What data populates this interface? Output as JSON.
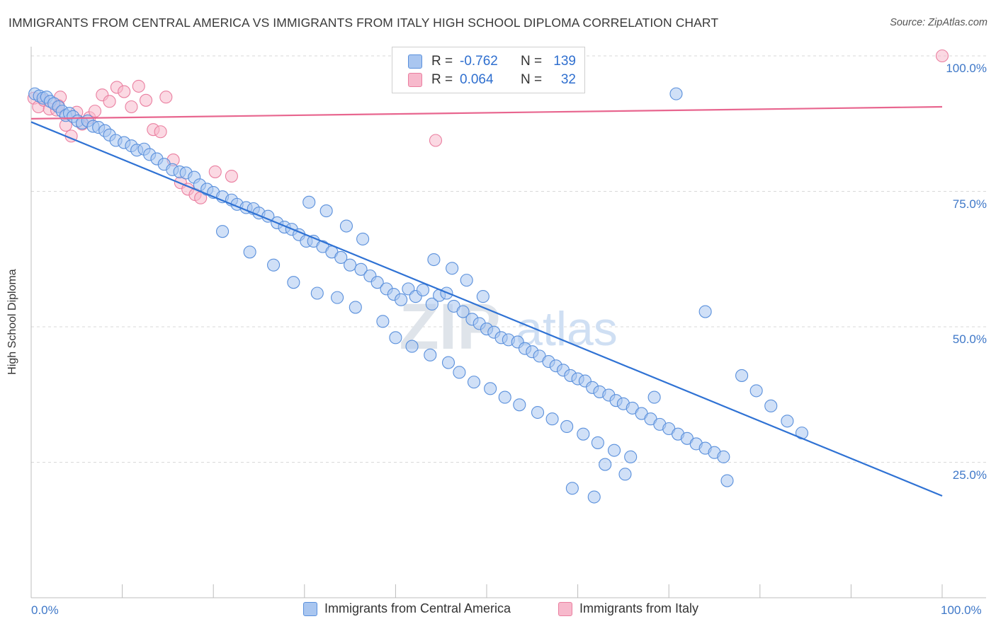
{
  "header": {
    "title": "IMMIGRANTS FROM CENTRAL AMERICA VS IMMIGRANTS FROM ITALY HIGH SCHOOL DIPLOMA CORRELATION CHART",
    "source": "Source: ZipAtlas.com"
  },
  "watermark": {
    "text_zip": "ZIP",
    "text_atlas": "atlas"
  },
  "legend": {
    "row1": {
      "r_label": "R =",
      "r_value": "-0.762",
      "n_label": "N =",
      "n_value": "139"
    },
    "row2": {
      "r_label": "R =",
      "r_value": "0.064",
      "n_label": "N =",
      "n_value": "32"
    }
  },
  "bottom_legend": {
    "series1": "Immigrants from Central America",
    "series2": "Immigrants from Italy"
  },
  "colors": {
    "blue_fill": "#a9c6f0",
    "blue_stroke": "#5a90dc",
    "blue_line": "#2f72d4",
    "pink_fill": "#f7b9cc",
    "pink_stroke": "#ea7fa0",
    "pink_line": "#e8668f",
    "grid": "#d9d9d9",
    "tick_text": "#3f78c8"
  },
  "chart_data": {
    "type": "scatter",
    "title": "IMMIGRANTS FROM CENTRAL AMERICA VS IMMIGRANTS FROM ITALY HIGH SCHOOL DIPLOMA CORRELATION CHART",
    "xlabel": "",
    "ylabel": "High School Diploma",
    "xlim": [
      0,
      100
    ],
    "ylim": [
      0,
      100
    ],
    "x_tick_labels": [
      "0.0%",
      "100.0%"
    ],
    "y_tick_labels": [
      "25.0%",
      "50.0%",
      "75.0%",
      "100.0%"
    ],
    "y_ticks": [
      25,
      50,
      75,
      100
    ],
    "grid": "horizontal dashed",
    "legend_position": "top-center",
    "series": [
      {
        "name": "Immigrants from Central America",
        "color": "#5a90dc",
        "r": -0.762,
        "n": 139,
        "trend": {
          "x": [
            0,
            100
          ],
          "y": [
            87.8,
            18.8
          ]
        },
        "points": [
          [
            0.4,
            93.0
          ],
          [
            0.9,
            92.6
          ],
          [
            1.3,
            92.2
          ],
          [
            1.7,
            92.4
          ],
          [
            2.1,
            91.6
          ],
          [
            2.5,
            91.2
          ],
          [
            3.0,
            90.6
          ],
          [
            3.4,
            89.8
          ],
          [
            3.8,
            89.0
          ],
          [
            4.2,
            89.4
          ],
          [
            4.6,
            88.8
          ],
          [
            5.1,
            88.0
          ],
          [
            5.6,
            87.6
          ],
          [
            6.2,
            88.0
          ],
          [
            6.8,
            87.0
          ],
          [
            7.4,
            86.8
          ],
          [
            8.1,
            86.2
          ],
          [
            8.6,
            85.4
          ],
          [
            9.3,
            84.4
          ],
          [
            10.2,
            84.0
          ],
          [
            11.0,
            83.4
          ],
          [
            11.6,
            82.6
          ],
          [
            12.4,
            82.8
          ],
          [
            13.0,
            81.8
          ],
          [
            13.8,
            81.0
          ],
          [
            14.6,
            80.0
          ],
          [
            15.5,
            79.0
          ],
          [
            16.3,
            78.6
          ],
          [
            17.0,
            78.4
          ],
          [
            17.9,
            77.6
          ],
          [
            18.5,
            76.2
          ],
          [
            19.3,
            75.4
          ],
          [
            20.0,
            74.8
          ],
          [
            21.0,
            74.0
          ],
          [
            22.0,
            73.4
          ],
          [
            22.6,
            72.6
          ],
          [
            23.6,
            72.0
          ],
          [
            24.4,
            71.8
          ],
          [
            25.0,
            71.0
          ],
          [
            26.0,
            70.4
          ],
          [
            27.0,
            69.2
          ],
          [
            27.8,
            68.4
          ],
          [
            28.6,
            68.0
          ],
          [
            29.4,
            67.0
          ],
          [
            30.2,
            65.8
          ],
          [
            31.0,
            65.8
          ],
          [
            32.0,
            64.8
          ],
          [
            33.0,
            63.8
          ],
          [
            34.0,
            62.8
          ],
          [
            35.0,
            61.4
          ],
          [
            36.2,
            60.6
          ],
          [
            37.2,
            59.4
          ],
          [
            38.0,
            58.2
          ],
          [
            39.0,
            57.0
          ],
          [
            39.8,
            56.0
          ],
          [
            40.6,
            55.0
          ],
          [
            41.4,
            57.0
          ],
          [
            42.2,
            55.6
          ],
          [
            43.0,
            56.8
          ],
          [
            44.0,
            54.2
          ],
          [
            44.8,
            55.8
          ],
          [
            45.6,
            56.2
          ],
          [
            46.4,
            53.8
          ],
          [
            47.4,
            52.8
          ],
          [
            48.4,
            51.4
          ],
          [
            49.2,
            50.6
          ],
          [
            50.0,
            49.6
          ],
          [
            50.8,
            49.0
          ],
          [
            51.6,
            48.0
          ],
          [
            52.4,
            47.6
          ],
          [
            53.4,
            47.2
          ],
          [
            54.2,
            46.0
          ],
          [
            55.0,
            45.4
          ],
          [
            55.8,
            44.6
          ],
          [
            56.8,
            43.6
          ],
          [
            57.6,
            42.8
          ],
          [
            58.4,
            42.0
          ],
          [
            59.2,
            41.0
          ],
          [
            60.0,
            40.4
          ],
          [
            60.8,
            40.0
          ],
          [
            61.6,
            38.8
          ],
          [
            62.4,
            38.0
          ],
          [
            63.4,
            37.4
          ],
          [
            64.2,
            36.4
          ],
          [
            65.0,
            35.8
          ],
          [
            66.0,
            35.0
          ],
          [
            67.0,
            34.0
          ],
          [
            68.0,
            33.0
          ],
          [
            69.0,
            32.0
          ],
          [
            70.0,
            31.2
          ],
          [
            71.0,
            30.2
          ],
          [
            72.0,
            29.4
          ],
          [
            73.0,
            28.4
          ],
          [
            74.0,
            27.6
          ],
          [
            75.0,
            26.8
          ],
          [
            76.0,
            26.0
          ],
          [
            30.5,
            73.0
          ],
          [
            32.4,
            71.4
          ],
          [
            34.6,
            68.6
          ],
          [
            36.4,
            66.2
          ],
          [
            44.2,
            62.4
          ],
          [
            46.2,
            60.8
          ],
          [
            47.8,
            58.6
          ],
          [
            49.6,
            55.6
          ],
          [
            21.0,
            67.6
          ],
          [
            24.0,
            63.8
          ],
          [
            26.6,
            61.4
          ],
          [
            28.8,
            58.2
          ],
          [
            31.4,
            56.2
          ],
          [
            33.6,
            55.4
          ],
          [
            35.6,
            53.6
          ],
          [
            38.6,
            51.0
          ],
          [
            40.0,
            48.0
          ],
          [
            41.8,
            46.4
          ],
          [
            43.8,
            44.8
          ],
          [
            45.8,
            43.4
          ],
          [
            47.0,
            41.6
          ],
          [
            48.6,
            39.8
          ],
          [
            50.4,
            38.6
          ],
          [
            52.0,
            37.0
          ],
          [
            53.6,
            35.6
          ],
          [
            55.6,
            34.2
          ],
          [
            57.2,
            33.0
          ],
          [
            58.8,
            31.6
          ],
          [
            60.6,
            30.2
          ],
          [
            62.2,
            28.6
          ],
          [
            64.0,
            27.2
          ],
          [
            65.8,
            26.0
          ],
          [
            70.8,
            93.0
          ],
          [
            74.0,
            52.8
          ],
          [
            76.4,
            21.6
          ],
          [
            68.4,
            37.0
          ],
          [
            63.0,
            24.6
          ],
          [
            65.2,
            22.8
          ],
          [
            59.4,
            20.2
          ],
          [
            61.8,
            18.6
          ],
          [
            78.0,
            41.0
          ],
          [
            79.6,
            38.2
          ],
          [
            81.2,
            35.4
          ],
          [
            83.0,
            32.6
          ],
          [
            84.6,
            30.4
          ]
        ]
      },
      {
        "name": "Immigrants from Italy",
        "color": "#ea7fa0",
        "r": 0.064,
        "n": 32,
        "trend": {
          "x": [
            0,
            100
          ],
          "y": [
            88.4,
            90.6
          ]
        },
        "points": [
          [
            0.3,
            92.2
          ],
          [
            0.8,
            90.6
          ],
          [
            1.4,
            91.8
          ],
          [
            2.0,
            90.2
          ],
          [
            2.8,
            90.0
          ],
          [
            3.2,
            92.4
          ],
          [
            3.8,
            87.2
          ],
          [
            4.4,
            85.2
          ],
          [
            5.0,
            89.6
          ],
          [
            5.6,
            87.4
          ],
          [
            6.4,
            88.6
          ],
          [
            7.0,
            89.8
          ],
          [
            7.8,
            92.8
          ],
          [
            8.6,
            91.6
          ],
          [
            9.4,
            94.2
          ],
          [
            10.2,
            93.4
          ],
          [
            11.0,
            90.6
          ],
          [
            11.8,
            94.4
          ],
          [
            12.6,
            91.8
          ],
          [
            13.4,
            86.4
          ],
          [
            14.2,
            86.0
          ],
          [
            14.8,
            92.4
          ],
          [
            15.6,
            80.8
          ],
          [
            16.4,
            76.6
          ],
          [
            17.2,
            75.4
          ],
          [
            18.0,
            74.4
          ],
          [
            18.6,
            73.8
          ],
          [
            20.2,
            78.6
          ],
          [
            22.0,
            77.8
          ],
          [
            44.4,
            84.4
          ],
          [
            100.0,
            100.0
          ],
          [
            3.0,
            90.8
          ]
        ]
      }
    ]
  }
}
